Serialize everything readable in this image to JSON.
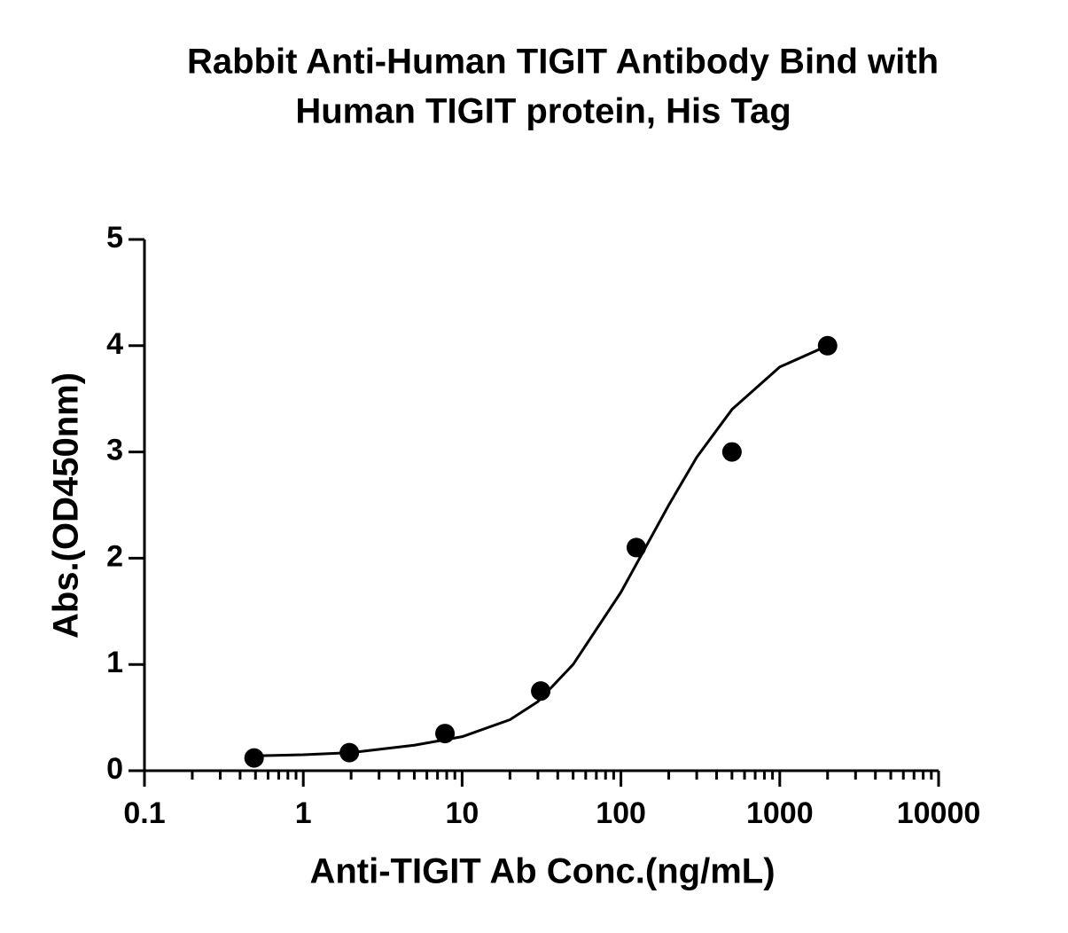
{
  "chart_data": {
    "type": "scatter",
    "title": [
      "Rabbit  Anti-Human TIGIT Antibody Bind with",
      "Human TIGIT protein, His Tag"
    ],
    "x_label": "Anti-TIGIT Ab Conc.(ng/mL)",
    "y_label": "Abs.(OD450nm)",
    "xscale": "log",
    "xlim": [
      0.1,
      10000
    ],
    "xticks": [
      0.1,
      1,
      10,
      100,
      1000,
      10000
    ],
    "ylim": [
      0,
      5
    ],
    "yticks": [
      0,
      1,
      2,
      3,
      4,
      5
    ],
    "series": [
      {
        "color": "#000000",
        "marker": "circle",
        "x": [
          0.49,
          1.95,
          7.8,
          31.25,
          125,
          500,
          2000
        ],
        "values": [
          0.12,
          0.17,
          0.35,
          0.75,
          2.1,
          3.0,
          4.0
        ]
      },
      {
        "color": "#000000",
        "marker": "line",
        "x": [
          0.5,
          1,
          2,
          5,
          10,
          20,
          30,
          50,
          100,
          200,
          300,
          500,
          1000,
          2000
        ],
        "values": [
          0.14,
          0.15,
          0.17,
          0.24,
          0.32,
          0.48,
          0.65,
          1.0,
          1.68,
          2.5,
          2.95,
          3.4,
          3.8,
          4.0
        ]
      }
    ]
  }
}
